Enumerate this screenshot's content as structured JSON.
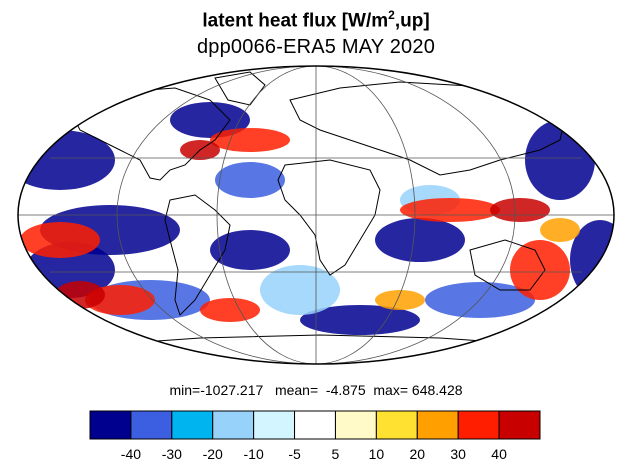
{
  "title": {
    "main_prefix": "latent heat flux [W/m",
    "main_sup": "2",
    "main_suffix": ",up]",
    "subtitle": "dpp0066-ERA5  MAY 2020"
  },
  "stats": {
    "text": "min=-1027.217   mean=  -4.875  max= 648.428",
    "min": -1027.217,
    "mean": -4.875,
    "max": 648.428
  },
  "colorbar": {
    "colors": [
      "#00008f",
      "#3b5fe0",
      "#00b4f0",
      "#96d2fa",
      "#d2f5ff",
      "#ffffff",
      "#fffac8",
      "#ffe132",
      "#ffa000",
      "#ff1e00",
      "#c80000"
    ],
    "labels": [
      "-40",
      "-30",
      "-20",
      "-10",
      "-5",
      "5",
      "10",
      "20",
      "30",
      "40"
    ]
  },
  "map": {
    "projection": "Mollweide",
    "grid": true,
    "coastlines": true,
    "land_color": "#000000",
    "pattern_colors": {
      "deep_negative": "#00008f",
      "negative": "#3b5fe0",
      "light_negative": "#96d2fa",
      "positive": "#ff1e00",
      "strong_positive": "#c80000",
      "moderate_positive": "#ffa000"
    }
  }
}
